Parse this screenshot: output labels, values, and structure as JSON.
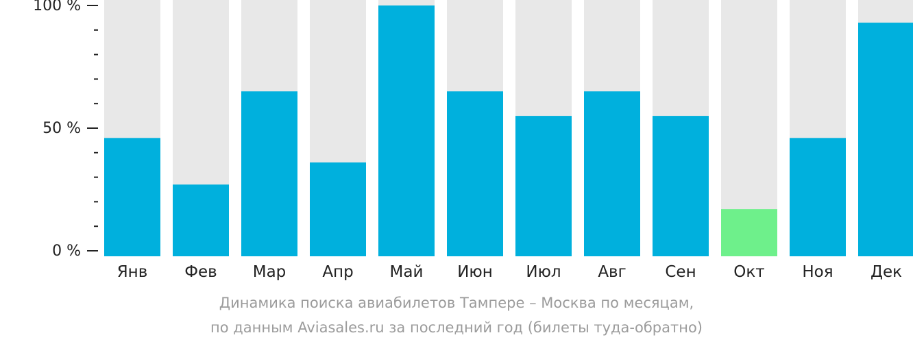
{
  "chart_data": {
    "type": "bar",
    "categories": [
      "Янв",
      "Фев",
      "Мар",
      "Апр",
      "Май",
      "Июн",
      "Июл",
      "Авг",
      "Сен",
      "Окт",
      "Ноя",
      "Дек"
    ],
    "values": [
      46,
      27,
      65,
      36,
      100,
      65,
      55,
      65,
      55,
      17,
      46,
      93
    ],
    "ylim": [
      0,
      100
    ],
    "y_ticks": [
      "0 %",
      "50 %",
      "100 %"
    ],
    "highlight_index": 9,
    "grid": false,
    "colors": {
      "bar": "#00b0dd",
      "highlight": "#6ef08b",
      "track": "#e8e8e8",
      "axis": "#222222",
      "caption": "#9b9b9b"
    }
  },
  "caption": {
    "line1": "Динамика поиска авиабилетов Тампере – Москва по месяцам,",
    "line2": "по данным Aviasales.ru за последний год (билеты туда-обратно)"
  }
}
